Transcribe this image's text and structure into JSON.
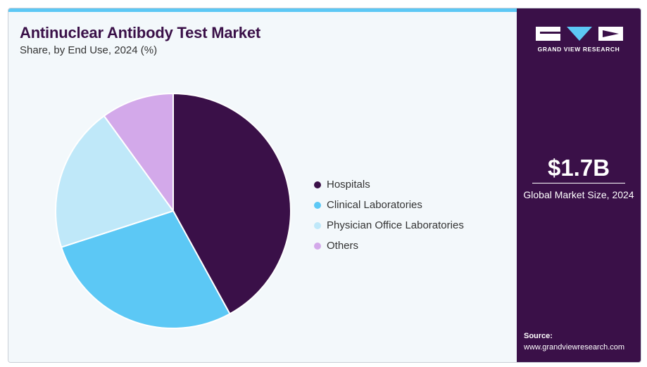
{
  "header": {
    "title": "Antinuclear Antibody Test Market",
    "subtitle": "Share, by End Use, 2024 (%)"
  },
  "chart_data": {
    "type": "pie",
    "title": "Antinuclear Antibody Test Market",
    "subtitle": "Share, by End Use, 2024 (%)",
    "legend_position": "right",
    "categories": [
      "Hospitals",
      "Clinical Laboratories",
      "Physician Office Laboratories",
      "Others"
    ],
    "values": [
      42,
      28,
      20,
      10
    ],
    "colors": [
      "#3a1048",
      "#5cc8f5",
      "#bfe8f9",
      "#d3a9ea"
    ]
  },
  "sidebar": {
    "logo_text": "GRAND VIEW RESEARCH",
    "market_value": "$1.7B",
    "market_label": "Global Market Size, 2024",
    "source_title": "Source:",
    "source_url": "www.grandviewresearch.com"
  },
  "colors": {
    "brand_dark": "#3a1048",
    "accent": "#5cc8f5",
    "background": "#f3f8fb"
  }
}
